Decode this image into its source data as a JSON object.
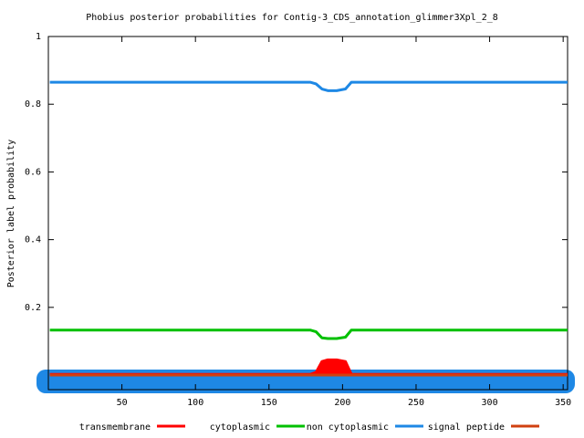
{
  "chart_data": {
    "type": "line",
    "title": "Phobius posterior probabilities for Contig-3_CDS_annotation_glimmer3Xpl_2_8",
    "y_label": "Posterior label probability",
    "x": [
      1,
      178,
      182,
      186,
      190,
      196,
      202,
      206,
      353
    ],
    "series": [
      {
        "name": "transmembrane",
        "color": "#ff0000",
        "filled": true,
        "values": [
          0.002,
          0.002,
          0.008,
          0.04,
          0.045,
          0.045,
          0.04,
          0.002,
          0.002
        ]
      },
      {
        "name": "cytoplasmic",
        "color": "#00c000",
        "values": [
          0.133,
          0.133,
          0.128,
          0.11,
          0.108,
          0.108,
          0.112,
          0.133,
          0.133
        ]
      },
      {
        "name": "non cytoplasmic",
        "color": "#1e88e5",
        "values": [
          0.865,
          0.865,
          0.86,
          0.845,
          0.84,
          0.84,
          0.845,
          0.865,
          0.865
        ]
      },
      {
        "name": "signal peptide",
        "color": "#d04010",
        "values": [
          0,
          0,
          0,
          0,
          0,
          0,
          0,
          0,
          0
        ]
      }
    ],
    "xlim": [
      0,
      353
    ],
    "xticks": [
      50,
      100,
      150,
      200,
      250,
      300,
      350
    ],
    "ylim": [
      -0.043,
      1
    ],
    "yticks": [
      0.2,
      0.4,
      0.6,
      0.8,
      1
    ]
  }
}
